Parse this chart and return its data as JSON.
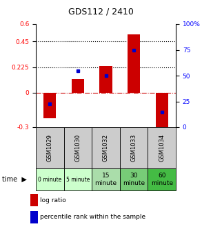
{
  "title": "GDS112 / 2410",
  "samples": [
    "GSM1029",
    "GSM1030",
    "GSM1032",
    "GSM1033",
    "GSM1034"
  ],
  "time_labels": [
    "0 minute",
    "5 minute",
    "15\nminute",
    "30\nminute",
    "60\nminute"
  ],
  "time_colors": [
    "#ccffcc",
    "#ccffcc",
    "#aaddaa",
    "#77cc77",
    "#44bb44"
  ],
  "sample_bg_color": "#cccccc",
  "log_ratios": [
    -0.22,
    0.12,
    0.235,
    0.51,
    -0.355
  ],
  "percentile_ranks": [
    23,
    55,
    50,
    75,
    15
  ],
  "ylim_left": [
    -0.3,
    0.6
  ],
  "ylim_right": [
    0,
    100
  ],
  "yticks_left": [
    -0.3,
    0,
    0.225,
    0.45,
    0.6
  ],
  "yticks_right": [
    0,
    25,
    50,
    75,
    100
  ],
  "hline_values": [
    0.225,
    0.45
  ],
  "bar_color": "#cc0000",
  "dot_color": "#0000cc",
  "zero_line_color": "#cc0000",
  "background_color": "#ffffff",
  "legend_log_ratio": "log ratio",
  "legend_percentile": "percentile rank within the sample",
  "time_row_label": "time"
}
